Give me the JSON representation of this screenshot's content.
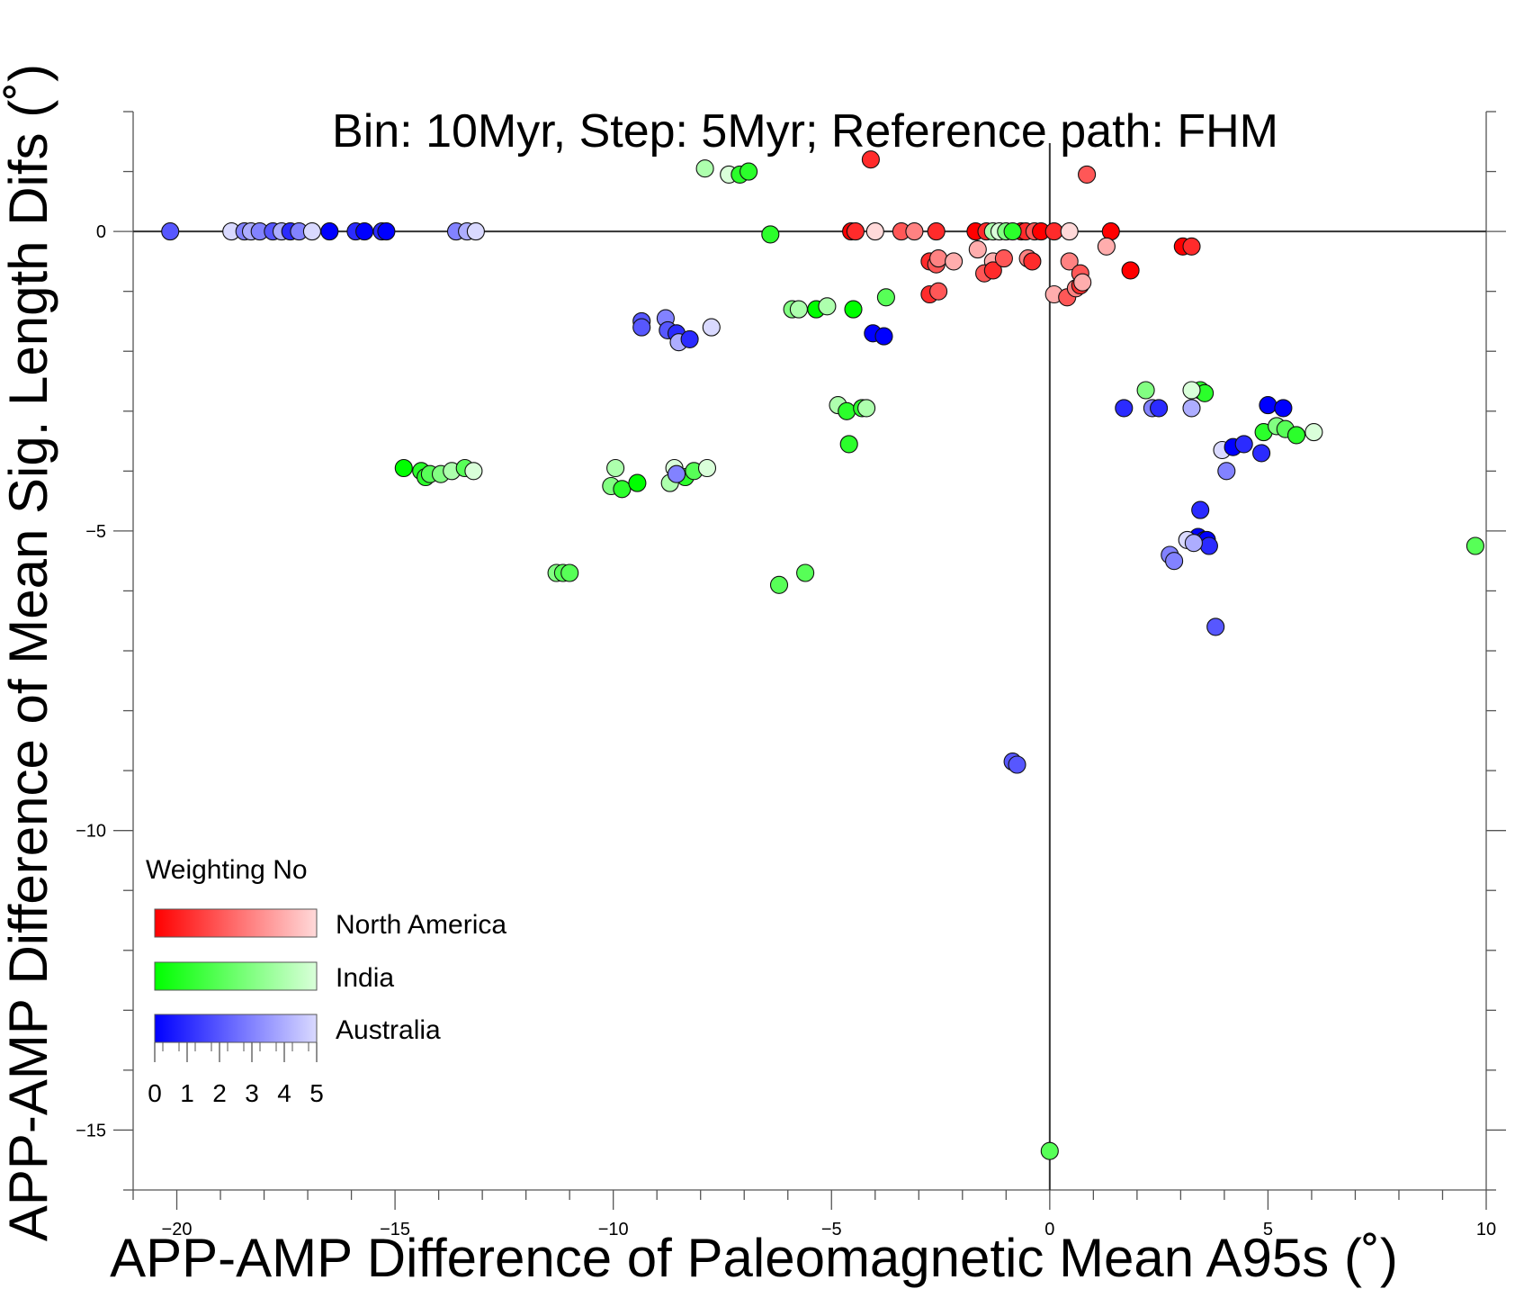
{
  "chart_data": {
    "type": "scatter",
    "title": "Bin: 10Myr, Step: 5Myr; Reference path: FHM",
    "xlabel": "APP-AMP Difference of Paleomagnetic Mean A95s (˚)",
    "ylabel": "APP-AMP Difference of Mean Sig. Length Difs (˚)",
    "xlim": [
      -21,
      10
    ],
    "ylim": [
      -16,
      2
    ],
    "x_ticks": [
      "−20",
      "−15",
      "−10",
      "−5",
      "0",
      "5",
      "10"
    ],
    "y_ticks": [
      "0",
      "−5",
      "−10",
      "−15"
    ],
    "reference_lines": {
      "x": 0,
      "y": 0
    },
    "legend": {
      "title": "Weighting No",
      "placement": "bottom-left",
      "scale_labels": [
        "0",
        "1",
        "2",
        "3",
        "4",
        "5"
      ],
      "entries": [
        {
          "label": "North America",
          "color": "#ff0000"
        },
        {
          "label": "India",
          "color": "#00ff00"
        },
        {
          "label": "Australia",
          "color": "#0000ff"
        }
      ]
    },
    "series": [
      {
        "name": "North America",
        "base_color": "#ff0000",
        "points": [
          [
            -4.1,
            1.2,
            1
          ],
          [
            0.85,
            0.95,
            2
          ],
          [
            -4.55,
            0,
            0
          ],
          [
            -4.45,
            0,
            1
          ],
          [
            -4.0,
            0,
            5
          ],
          [
            -3.4,
            0,
            2
          ],
          [
            -3.1,
            0,
            3
          ],
          [
            -2.6,
            0,
            1
          ],
          [
            -1.7,
            0,
            0
          ],
          [
            -1.45,
            0,
            1
          ],
          [
            -0.65,
            0,
            0
          ],
          [
            -0.55,
            0,
            1
          ],
          [
            -0.35,
            0,
            2
          ],
          [
            -0.2,
            0,
            0
          ],
          [
            0.1,
            0,
            1
          ],
          [
            0.45,
            0,
            5
          ],
          [
            1.4,
            0,
            0
          ],
          [
            -2.75,
            -0.5,
            1
          ],
          [
            -2.6,
            -0.55,
            2
          ],
          [
            -2.55,
            -0.45,
            3
          ],
          [
            -2.2,
            -0.5,
            4
          ],
          [
            -1.65,
            -0.3,
            4
          ],
          [
            -1.3,
            -0.5,
            4
          ],
          [
            -1.5,
            -0.7,
            2
          ],
          [
            -1.3,
            -0.65,
            1
          ],
          [
            -1.05,
            -0.45,
            2
          ],
          [
            -0.5,
            -0.45,
            3
          ],
          [
            -0.4,
            -0.5,
            1
          ],
          [
            0.45,
            -0.5,
            3
          ],
          [
            1.3,
            -0.25,
            4
          ],
          [
            1.85,
            -0.65,
            0
          ],
          [
            3.05,
            -0.25,
            0
          ],
          [
            3.25,
            -0.25,
            1
          ],
          [
            -2.75,
            -1.05,
            1
          ],
          [
            -2.55,
            -1.0,
            2
          ],
          [
            0.1,
            -1.05,
            4
          ],
          [
            0.4,
            -1.1,
            2
          ],
          [
            0.6,
            -0.95,
            3
          ],
          [
            0.7,
            -0.9,
            1
          ],
          [
            0.7,
            -0.7,
            2
          ],
          [
            0.75,
            -0.85,
            4
          ]
        ]
      },
      {
        "name": "India",
        "base_color": "#00ff00",
        "points": [
          [
            -7.9,
            1.05,
            4
          ],
          [
            -7.35,
            0.95,
            5
          ],
          [
            -7.1,
            0.95,
            1
          ],
          [
            -6.9,
            1.0,
            1
          ],
          [
            -1.3,
            0,
            4
          ],
          [
            -1.15,
            0,
            5
          ],
          [
            -1.0,
            0,
            3
          ],
          [
            -0.85,
            0,
            1
          ],
          [
            -6.4,
            -0.05,
            1
          ],
          [
            -5.9,
            -1.3,
            3
          ],
          [
            -5.75,
            -1.3,
            4
          ],
          [
            -5.35,
            -1.3,
            0
          ],
          [
            -5.1,
            -1.25,
            4
          ],
          [
            -4.5,
            -1.3,
            0
          ],
          [
            -3.75,
            -1.1,
            2
          ],
          [
            -4.85,
            -2.9,
            4
          ],
          [
            -4.65,
            -3.0,
            1
          ],
          [
            -4.3,
            -2.95,
            1
          ],
          [
            -4.2,
            -2.95,
            4
          ],
          [
            -4.6,
            -3.55,
            1
          ],
          [
            -14.8,
            -3.95,
            0
          ],
          [
            -14.4,
            -4.0,
            1
          ],
          [
            -14.3,
            -4.1,
            1
          ],
          [
            -14.2,
            -4.05,
            2
          ],
          [
            -13.95,
            -4.05,
            3
          ],
          [
            -13.7,
            -4.0,
            4
          ],
          [
            -13.4,
            -3.95,
            2
          ],
          [
            -13.2,
            -4.0,
            5
          ],
          [
            -10.05,
            -4.25,
            3
          ],
          [
            -9.95,
            -3.95,
            4
          ],
          [
            -9.8,
            -4.3,
            1
          ],
          [
            -9.45,
            -4.2,
            0
          ],
          [
            -8.7,
            -4.2,
            4
          ],
          [
            -8.6,
            -3.95,
            5
          ],
          [
            -8.35,
            -4.1,
            1
          ],
          [
            -8.15,
            -4.0,
            2
          ],
          [
            -7.85,
            -3.95,
            5
          ],
          [
            -11.3,
            -5.7,
            3
          ],
          [
            -11.15,
            -5.7,
            2
          ],
          [
            -11.0,
            -5.7,
            2
          ],
          [
            -6.2,
            -5.9,
            2
          ],
          [
            -5.6,
            -5.7,
            2
          ],
          [
            2.2,
            -2.65,
            3
          ],
          [
            3.45,
            -2.65,
            1
          ],
          [
            3.55,
            -2.7,
            1
          ],
          [
            3.25,
            -2.65,
            5
          ],
          [
            4.9,
            -3.35,
            1
          ],
          [
            5.2,
            -3.25,
            3
          ],
          [
            5.4,
            -3.3,
            2
          ],
          [
            5.65,
            -3.4,
            1
          ],
          [
            6.05,
            -3.35,
            5
          ],
          [
            9.75,
            -5.25,
            2
          ],
          [
            0,
            -15.35,
            2
          ]
        ]
      },
      {
        "name": "Australia",
        "base_color": "#0000ff",
        "points": [
          [
            -20.15,
            0,
            2
          ],
          [
            -18.75,
            0,
            5
          ],
          [
            -18.45,
            0,
            3
          ],
          [
            -18.3,
            0,
            4
          ],
          [
            -18.1,
            0,
            3
          ],
          [
            -17.8,
            0,
            2
          ],
          [
            -17.6,
            0,
            4
          ],
          [
            -17.4,
            0,
            1
          ],
          [
            -17.2,
            0,
            3
          ],
          [
            -16.9,
            0,
            5
          ],
          [
            -16.5,
            0,
            0
          ],
          [
            -15.9,
            0,
            1
          ],
          [
            -15.7,
            0,
            0
          ],
          [
            -15.3,
            0,
            1
          ],
          [
            -15.2,
            0,
            0
          ],
          [
            -13.6,
            0,
            3
          ],
          [
            -13.35,
            0,
            4
          ],
          [
            -13.15,
            0,
            5
          ],
          [
            -9.35,
            -1.5,
            2
          ],
          [
            -9.35,
            -1.6,
            2
          ],
          [
            -8.8,
            -1.45,
            3
          ],
          [
            -8.75,
            -1.65,
            2
          ],
          [
            -8.55,
            -1.7,
            1
          ],
          [
            -8.5,
            -1.85,
            4
          ],
          [
            -8.25,
            -1.8,
            1
          ],
          [
            -7.75,
            -1.6,
            5
          ],
          [
            -8.55,
            -4.05,
            3
          ],
          [
            -4.05,
            -1.7,
            0
          ],
          [
            -3.8,
            -1.75,
            0
          ],
          [
            1.7,
            -2.95,
            1
          ],
          [
            2.35,
            -2.95,
            3
          ],
          [
            2.5,
            -2.95,
            1
          ],
          [
            3.25,
            -2.95,
            4
          ],
          [
            5.0,
            -2.9,
            0
          ],
          [
            5.35,
            -2.95,
            0
          ],
          [
            3.95,
            -3.65,
            5
          ],
          [
            4.2,
            -3.6,
            0
          ],
          [
            4.45,
            -3.55,
            1
          ],
          [
            4.85,
            -3.7,
            1
          ],
          [
            4.05,
            -4.0,
            3
          ],
          [
            3.45,
            -4.65,
            1
          ],
          [
            3.4,
            -5.1,
            0
          ],
          [
            3.55,
            -5.15,
            1
          ],
          [
            3.6,
            -5.15,
            0
          ],
          [
            3.65,
            -5.25,
            1
          ],
          [
            3.15,
            -5.15,
            5
          ],
          [
            3.3,
            -5.2,
            4
          ],
          [
            2.75,
            -5.4,
            3
          ],
          [
            2.85,
            -5.5,
            3
          ],
          [
            3.8,
            -6.6,
            2
          ],
          [
            -0.85,
            -8.85,
            2
          ],
          [
            -0.75,
            -8.9,
            2
          ]
        ]
      }
    ]
  }
}
